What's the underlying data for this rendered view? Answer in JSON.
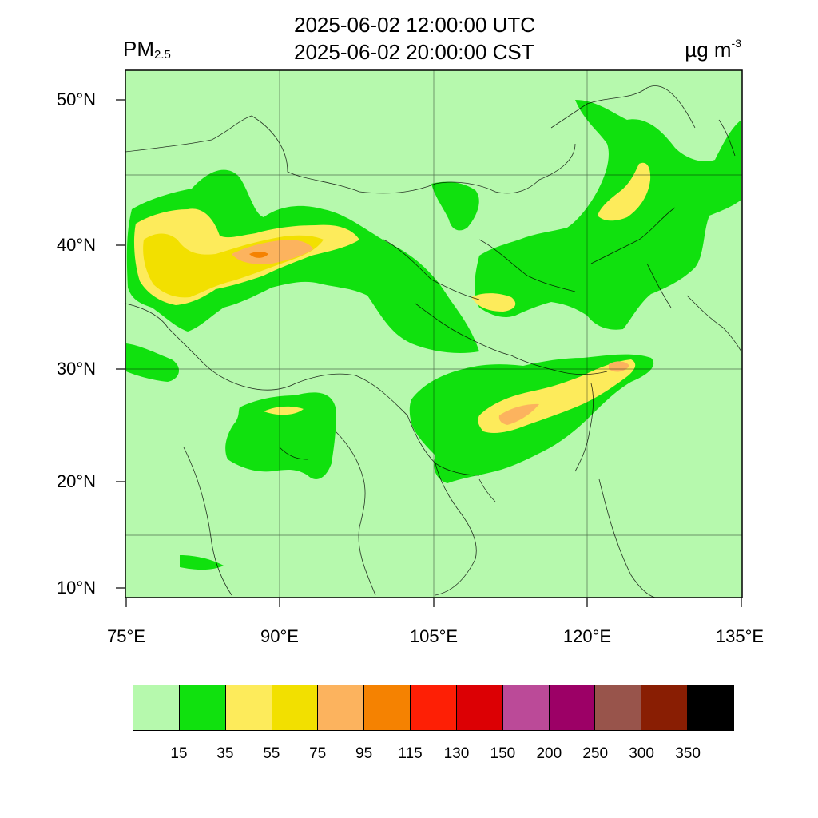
{
  "header": {
    "time_utc": "2025-06-02 12:00:00 UTC",
    "time_cst": "2025-06-02 20:00:00 CST",
    "variable_main": "PM",
    "variable_sub": "2.5",
    "units_main": "µg m",
    "units_sup": "-3"
  },
  "axes": {
    "lat_labels": [
      "50°N",
      "40°N",
      "30°N",
      "20°N",
      "10°N"
    ],
    "lon_labels": [
      "75°E",
      "90°E",
      "105°E",
      "120°E",
      "135°E"
    ]
  },
  "legend": {
    "colors": [
      "#b6f9ad",
      "#10e10e",
      "#fdeb5b",
      "#f2e000",
      "#fcb35e",
      "#f58201",
      "#fe1f05",
      "#dc0004",
      "#bb4a98",
      "#9c0066",
      "#98544b",
      "#891e03",
      "#000000"
    ],
    "labels": [
      "15",
      "35",
      "55",
      "75",
      "95",
      "115",
      "130",
      "150",
      "200",
      "250",
      "300",
      "350"
    ]
  },
  "map": {
    "background_color": "#b6f9ad",
    "region": "East Asia / China",
    "field": "PM2.5 concentration"
  }
}
